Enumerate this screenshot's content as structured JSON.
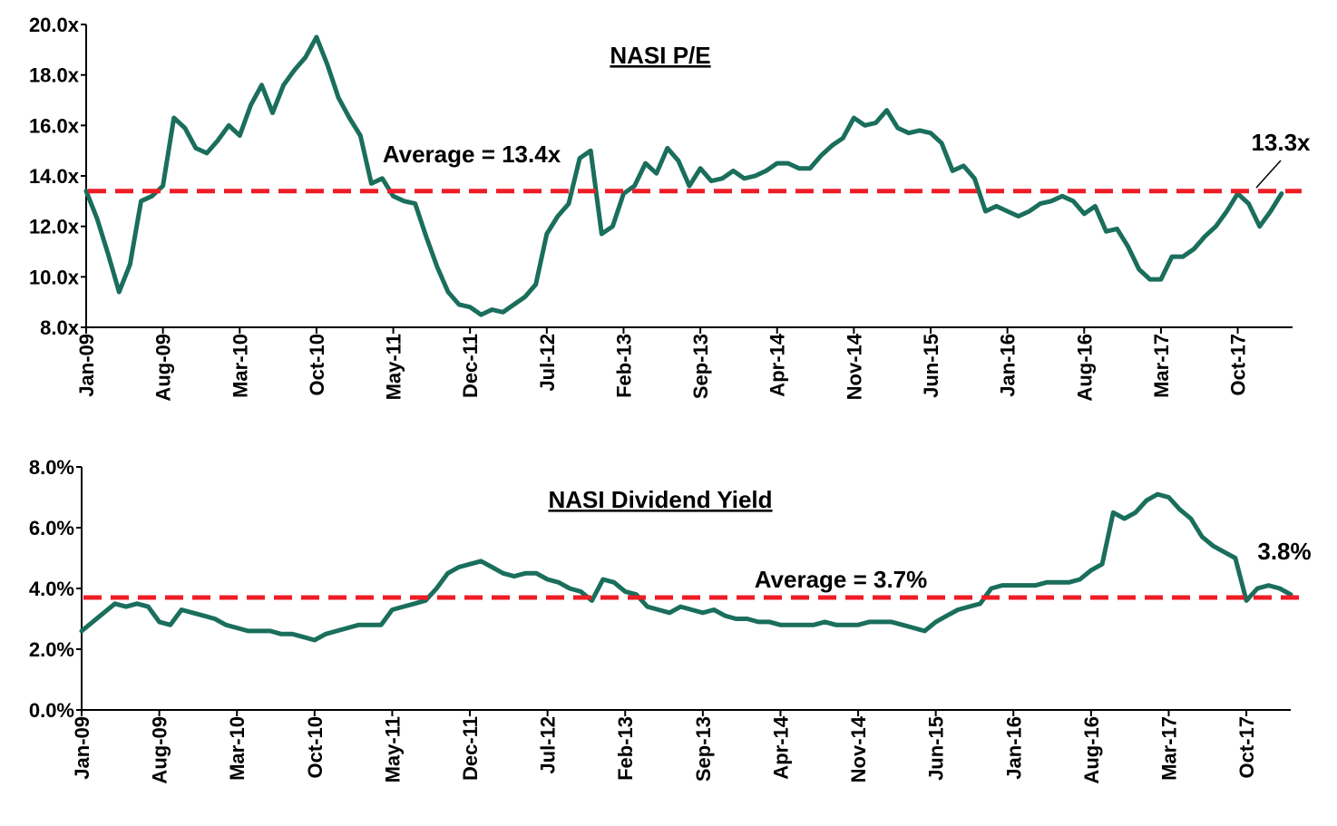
{
  "colors": {
    "series": "#1a6e5c",
    "average_line": "#ee1c25",
    "axis": "#000000"
  },
  "chart_data": [
    {
      "type": "line",
      "title": "NASI P/E",
      "xlabel": "",
      "ylabel": "",
      "ylim": [
        8,
        20
      ],
      "y_ticks": [
        "20.0x",
        "18.0x",
        "16.0x",
        "14.0x",
        "12.0x",
        "10.0x",
        "8.0x"
      ],
      "x_ticks": [
        "Jan-09",
        "Aug-09",
        "Mar-10",
        "Oct-10",
        "May-11",
        "Dec-11",
        "Jul-12",
        "Feb-13",
        "Sep-13",
        "Apr-14",
        "Nov-14",
        "Jun-15",
        "Jan-16",
        "Aug-16",
        "Mar-17",
        "Oct-17"
      ],
      "x_range": [
        "2009-01",
        "2018-03"
      ],
      "grid": false,
      "average": {
        "value": 13.4,
        "label": "Average = 13.4x"
      },
      "end_label": "13.3x",
      "series": [
        {
          "points": [
            [
              "2009-01",
              13.4
            ],
            [
              "2009-02",
              12.3
            ],
            [
              "2009-03",
              10.9
            ],
            [
              "2009-04",
              9.4
            ],
            [
              "2009-05",
              10.5
            ],
            [
              "2009-06",
              13.0
            ],
            [
              "2009-07",
              13.2
            ],
            [
              "2009-08",
              13.6
            ],
            [
              "2009-09",
              16.3
            ],
            [
              "2009-10",
              15.9
            ],
            [
              "2009-11",
              15.1
            ],
            [
              "2009-12",
              14.9
            ],
            [
              "2010-01",
              15.4
            ],
            [
              "2010-02",
              16.0
            ],
            [
              "2010-03",
              15.6
            ],
            [
              "2010-04",
              16.8
            ],
            [
              "2010-05",
              17.6
            ],
            [
              "2010-06",
              16.5
            ],
            [
              "2010-07",
              17.6
            ],
            [
              "2010-08",
              18.2
            ],
            [
              "2010-09",
              18.7
            ],
            [
              "2010-10",
              19.5
            ],
            [
              "2010-11",
              18.4
            ],
            [
              "2010-12",
              17.1
            ],
            [
              "2011-01",
              16.3
            ],
            [
              "2011-02",
              15.6
            ],
            [
              "2011-03",
              13.7
            ],
            [
              "2011-04",
              13.9
            ],
            [
              "2011-05",
              13.2
            ],
            [
              "2011-06",
              13.0
            ],
            [
              "2011-07",
              12.9
            ],
            [
              "2011-08",
              11.6
            ],
            [
              "2011-09",
              10.4
            ],
            [
              "2011-10",
              9.4
            ],
            [
              "2011-11",
              8.9
            ],
            [
              "2011-12",
              8.8
            ],
            [
              "2012-01",
              8.5
            ],
            [
              "2012-02",
              8.7
            ],
            [
              "2012-03",
              8.6
            ],
            [
              "2012-04",
              8.9
            ],
            [
              "2012-05",
              9.2
            ],
            [
              "2012-06",
              9.7
            ],
            [
              "2012-07",
              11.7
            ],
            [
              "2012-08",
              12.4
            ],
            [
              "2012-09",
              12.9
            ],
            [
              "2012-10",
              14.7
            ],
            [
              "2012-11",
              15.0
            ],
            [
              "2012-12",
              11.7
            ],
            [
              "2013-01",
              12.0
            ],
            [
              "2013-02",
              13.3
            ],
            [
              "2013-03",
              13.6
            ],
            [
              "2013-04",
              14.5
            ],
            [
              "2013-05",
              14.1
            ],
            [
              "2013-06",
              15.1
            ],
            [
              "2013-07",
              14.6
            ],
            [
              "2013-08",
              13.6
            ],
            [
              "2013-09",
              14.3
            ],
            [
              "2013-10",
              13.8
            ],
            [
              "2013-11",
              13.9
            ],
            [
              "2013-12",
              14.2
            ],
            [
              "2014-01",
              13.9
            ],
            [
              "2014-02",
              14.0
            ],
            [
              "2014-03",
              14.2
            ],
            [
              "2014-04",
              14.5
            ],
            [
              "2014-05",
              14.5
            ],
            [
              "2014-06",
              14.3
            ],
            [
              "2014-07",
              14.3
            ],
            [
              "2014-08",
              14.8
            ],
            [
              "2014-09",
              15.2
            ],
            [
              "2014-10",
              15.5
            ],
            [
              "2014-11",
              16.3
            ],
            [
              "2014-12",
              16.0
            ],
            [
              "2015-01",
              16.1
            ],
            [
              "2015-02",
              16.6
            ],
            [
              "2015-03",
              15.9
            ],
            [
              "2015-04",
              15.7
            ],
            [
              "2015-05",
              15.8
            ],
            [
              "2015-06",
              15.7
            ],
            [
              "2015-07",
              15.3
            ],
            [
              "2015-08",
              14.2
            ],
            [
              "2015-09",
              14.4
            ],
            [
              "2015-10",
              13.9
            ],
            [
              "2015-11",
              12.6
            ],
            [
              "2015-12",
              12.8
            ],
            [
              "2016-01",
              12.6
            ],
            [
              "2016-02",
              12.4
            ],
            [
              "2016-03",
              12.6
            ],
            [
              "2016-04",
              12.9
            ],
            [
              "2016-05",
              13.0
            ],
            [
              "2016-06",
              13.2
            ],
            [
              "2016-07",
              13.0
            ],
            [
              "2016-08",
              12.5
            ],
            [
              "2016-09",
              12.8
            ],
            [
              "2016-10",
              11.8
            ],
            [
              "2016-11",
              11.9
            ],
            [
              "2016-12",
              11.2
            ],
            [
              "2017-01",
              10.3
            ],
            [
              "2017-02",
              9.9
            ],
            [
              "2017-03",
              9.9
            ],
            [
              "2017-04",
              10.8
            ],
            [
              "2017-05",
              10.8
            ],
            [
              "2017-06",
              11.1
            ],
            [
              "2017-07",
              11.6
            ],
            [
              "2017-08",
              12.0
            ],
            [
              "2017-09",
              12.6
            ],
            [
              "2017-10",
              13.3
            ],
            [
              "2017-11",
              12.9
            ],
            [
              "2017-12",
              12.0
            ],
            [
              "2018-01",
              12.6
            ],
            [
              "2018-02",
              13.3
            ]
          ]
        }
      ]
    },
    {
      "type": "line",
      "title": "NASI Dividend Yield",
      "xlabel": "",
      "ylabel": "",
      "ylim": [
        0,
        8
      ],
      "y_ticks": [
        "8.0%",
        "6.0%",
        "4.0%",
        "2.0%",
        "0.0%"
      ],
      "x_ticks": [
        "Jan-09",
        "Aug-09",
        "Mar-10",
        "Oct-10",
        "May-11",
        "Dec-11",
        "Jul-12",
        "Feb-13",
        "Sep-13",
        "Apr-14",
        "Nov-14",
        "Jun-15",
        "Jan-16",
        "Aug-16",
        "Mar-17",
        "Oct-17"
      ],
      "x_range": [
        "2009-01",
        "2018-02"
      ],
      "grid": false,
      "average": {
        "value": 3.7,
        "label": "Average = 3.7%"
      },
      "end_label": "3.8%",
      "series": [
        {
          "points": [
            [
              "2009-01",
              2.6
            ],
            [
              "2009-02",
              2.9
            ],
            [
              "2009-03",
              3.2
            ],
            [
              "2009-04",
              3.5
            ],
            [
              "2009-05",
              3.4
            ],
            [
              "2009-06",
              3.5
            ],
            [
              "2009-07",
              3.4
            ],
            [
              "2009-08",
              2.9
            ],
            [
              "2009-09",
              2.8
            ],
            [
              "2009-10",
              3.3
            ],
            [
              "2009-11",
              3.2
            ],
            [
              "2009-12",
              3.1
            ],
            [
              "2010-01",
              3.0
            ],
            [
              "2010-02",
              2.8
            ],
            [
              "2010-03",
              2.7
            ],
            [
              "2010-04",
              2.6
            ],
            [
              "2010-05",
              2.6
            ],
            [
              "2010-06",
              2.6
            ],
            [
              "2010-07",
              2.5
            ],
            [
              "2010-08",
              2.5
            ],
            [
              "2010-09",
              2.4
            ],
            [
              "2010-10",
              2.3
            ],
            [
              "2010-11",
              2.5
            ],
            [
              "2010-12",
              2.6
            ],
            [
              "2011-01",
              2.7
            ],
            [
              "2011-02",
              2.8
            ],
            [
              "2011-03",
              2.8
            ],
            [
              "2011-04",
              2.8
            ],
            [
              "2011-05",
              3.3
            ],
            [
              "2011-06",
              3.4
            ],
            [
              "2011-07",
              3.5
            ],
            [
              "2011-08",
              3.6
            ],
            [
              "2011-09",
              4.0
            ],
            [
              "2011-10",
              4.5
            ],
            [
              "2011-11",
              4.7
            ],
            [
              "2011-12",
              4.8
            ],
            [
              "2012-01",
              4.9
            ],
            [
              "2012-02",
              4.7
            ],
            [
              "2012-03",
              4.5
            ],
            [
              "2012-04",
              4.4
            ],
            [
              "2012-05",
              4.5
            ],
            [
              "2012-06",
              4.5
            ],
            [
              "2012-07",
              4.3
            ],
            [
              "2012-08",
              4.2
            ],
            [
              "2012-09",
              4.0
            ],
            [
              "2012-10",
              3.9
            ],
            [
              "2012-11",
              3.6
            ],
            [
              "2012-12",
              4.3
            ],
            [
              "2013-01",
              4.2
            ],
            [
              "2013-02",
              3.9
            ],
            [
              "2013-03",
              3.8
            ],
            [
              "2013-04",
              3.4
            ],
            [
              "2013-05",
              3.3
            ],
            [
              "2013-06",
              3.2
            ],
            [
              "2013-07",
              3.4
            ],
            [
              "2013-08",
              3.3
            ],
            [
              "2013-09",
              3.2
            ],
            [
              "2013-10",
              3.3
            ],
            [
              "2013-11",
              3.1
            ],
            [
              "2013-12",
              3.0
            ],
            [
              "2014-01",
              3.0
            ],
            [
              "2014-02",
              2.9
            ],
            [
              "2014-03",
              2.9
            ],
            [
              "2014-04",
              2.8
            ],
            [
              "2014-05",
              2.8
            ],
            [
              "2014-06",
              2.8
            ],
            [
              "2014-07",
              2.8
            ],
            [
              "2014-08",
              2.9
            ],
            [
              "2014-09",
              2.8
            ],
            [
              "2014-10",
              2.8
            ],
            [
              "2014-11",
              2.8
            ],
            [
              "2014-12",
              2.9
            ],
            [
              "2015-01",
              2.9
            ],
            [
              "2015-02",
              2.9
            ],
            [
              "2015-03",
              2.8
            ],
            [
              "2015-04",
              2.7
            ],
            [
              "2015-05",
              2.6
            ],
            [
              "2015-06",
              2.9
            ],
            [
              "2015-07",
              3.1
            ],
            [
              "2015-08",
              3.3
            ],
            [
              "2015-09",
              3.4
            ],
            [
              "2015-10",
              3.5
            ],
            [
              "2015-11",
              4.0
            ],
            [
              "2015-12",
              4.1
            ],
            [
              "2016-01",
              4.1
            ],
            [
              "2016-02",
              4.1
            ],
            [
              "2016-03",
              4.1
            ],
            [
              "2016-04",
              4.2
            ],
            [
              "2016-05",
              4.2
            ],
            [
              "2016-06",
              4.2
            ],
            [
              "2016-07",
              4.3
            ],
            [
              "2016-08",
              4.6
            ],
            [
              "2016-09",
              4.8
            ],
            [
              "2016-10",
              6.5
            ],
            [
              "2016-11",
              6.3
            ],
            [
              "2016-12",
              6.5
            ],
            [
              "2017-01",
              6.9
            ],
            [
              "2017-02",
              7.1
            ],
            [
              "2017-03",
              7.0
            ],
            [
              "2017-04",
              6.6
            ],
            [
              "2017-05",
              6.3
            ],
            [
              "2017-06",
              5.7
            ],
            [
              "2017-07",
              5.4
            ],
            [
              "2017-08",
              5.2
            ],
            [
              "2017-09",
              5.0
            ],
            [
              "2017-10",
              3.6
            ],
            [
              "2017-11",
              4.0
            ],
            [
              "2017-12",
              4.1
            ],
            [
              "2018-01",
              4.0
            ],
            [
              "2018-02",
              3.8
            ]
          ]
        }
      ]
    }
  ]
}
